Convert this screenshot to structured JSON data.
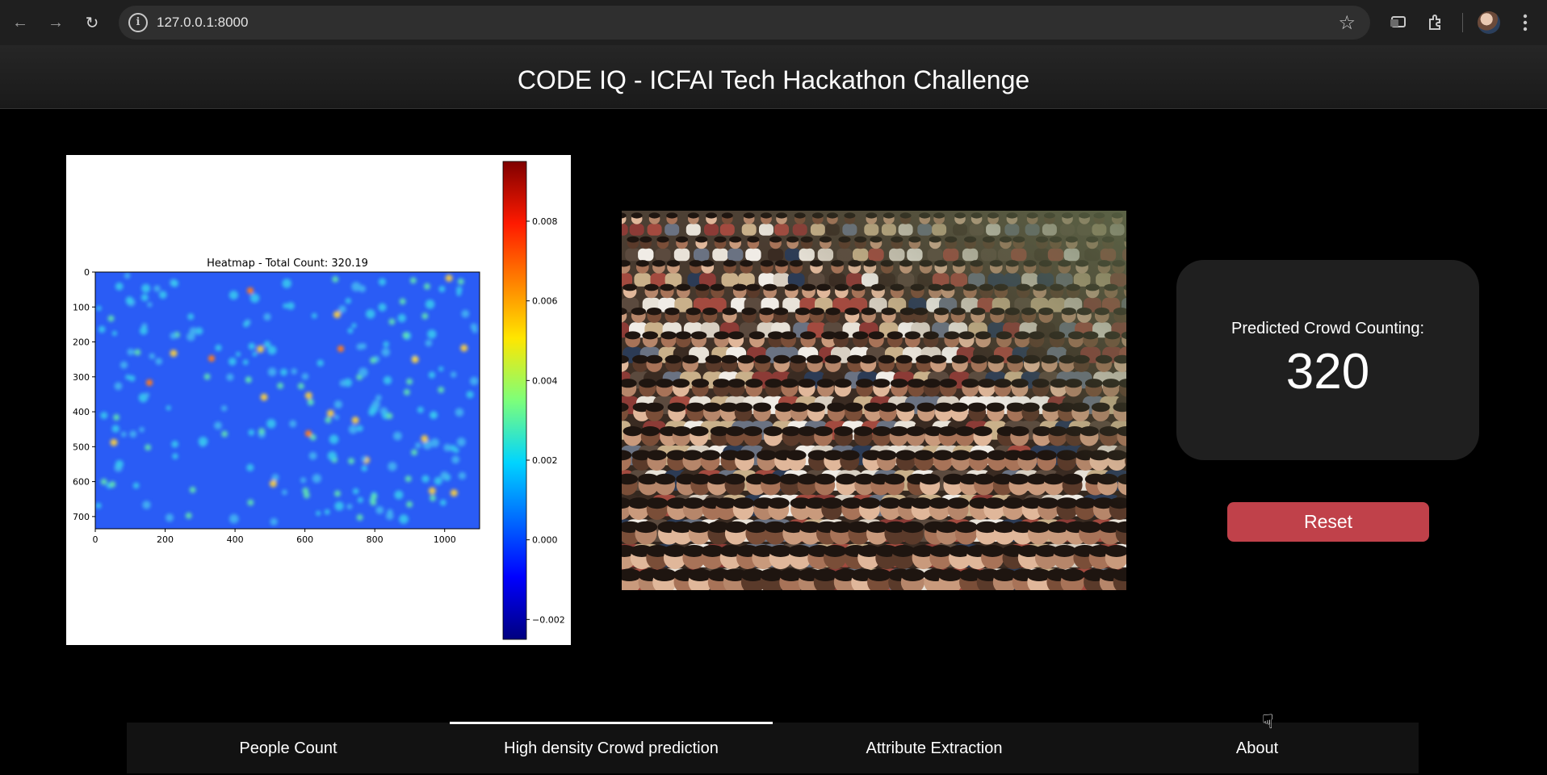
{
  "browser": {
    "url": "127.0.0.1:8000",
    "icons": [
      "back-arrow-icon",
      "forward-arrow-icon",
      "reload-icon",
      "site-info-icon",
      "bookmark-star-icon",
      "cast-icon",
      "extensions-icon",
      "profile-avatar",
      "kebab-menu-icon"
    ]
  },
  "header": {
    "title": "CODE IQ - ICFAI Tech Hackathon Challenge"
  },
  "heatmap": {
    "title": "Heatmap - Total Count: 320.19",
    "chart_data": {
      "type": "heatmap",
      "title": "Heatmap - Total Count: 320.19",
      "x_ticks": [
        "0",
        "200",
        "400",
        "600",
        "800",
        "1000"
      ],
      "y_ticks": [
        "0",
        "100",
        "200",
        "300",
        "400",
        "500",
        "600",
        "700"
      ],
      "xlim": [
        0,
        1100
      ],
      "ylim": [
        0,
        735
      ],
      "y_inverted": true,
      "colorbar": {
        "ticks": [
          "0.008",
          "0.006",
          "0.004",
          "0.002",
          "0.000",
          "−0.002"
        ],
        "range": [
          -0.0025,
          0.0095
        ],
        "colormap": "jet"
      }
    }
  },
  "result": {
    "label": "Predicted Crowd Counting:",
    "value": "320"
  },
  "reset_label": "Reset",
  "tabs": [
    {
      "label": "People Count",
      "active": false
    },
    {
      "label": "High density Crowd prediction",
      "active": true
    },
    {
      "label": "Attribute Extraction",
      "active": false
    },
    {
      "label": "About",
      "active": false
    }
  ]
}
